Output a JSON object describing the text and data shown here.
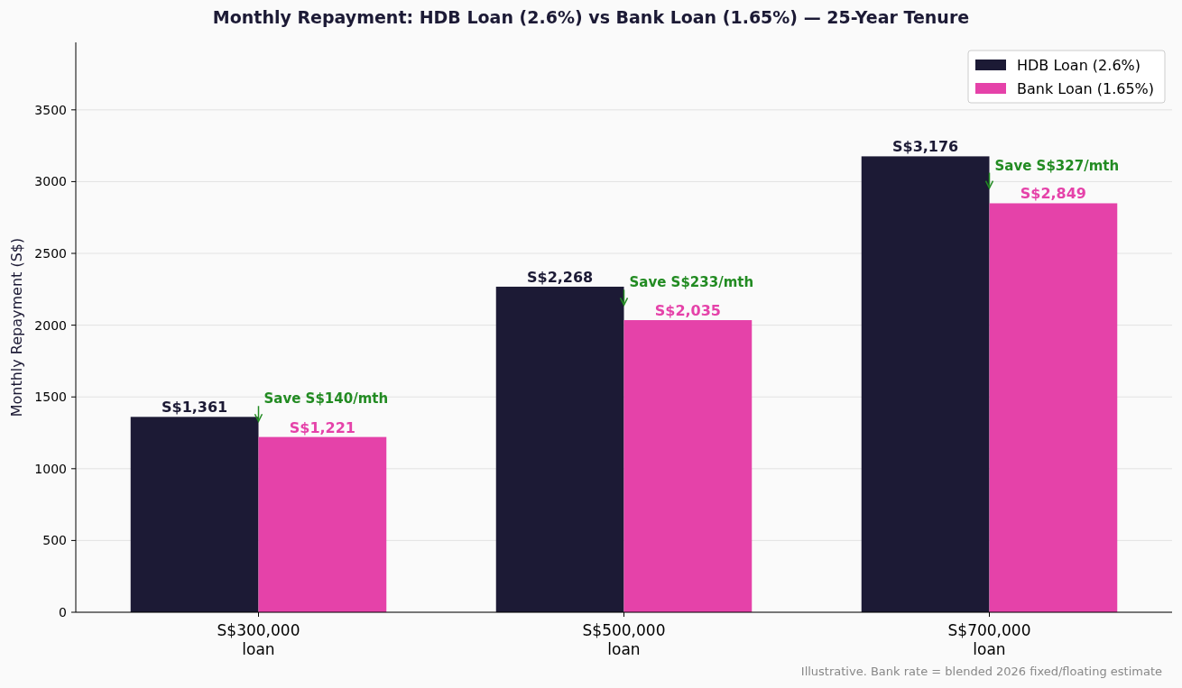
{
  "chart_data": {
    "type": "bar",
    "title": "Monthly Repayment: HDB Loan (2.6%) vs Bank Loan (1.65%) — 25-Year Tenure",
    "ylabel": "Monthly Repayment (S$)",
    "categories": [
      "S$300,000\nloan",
      "S$500,000\nloan",
      "S$700,000\nloan"
    ],
    "series": [
      {
        "name": "HDB Loan (2.6%)",
        "color": "#1c1a35",
        "values": [
          1361,
          2268,
          3176
        ],
        "value_labels": [
          "S$1,361",
          "S$2,268",
          "S$3,176"
        ]
      },
      {
        "name": "Bank Loan (1.65%)",
        "color": "#e542a9",
        "values": [
          1221,
          2035,
          2849
        ],
        "value_labels": [
          "S$1,221",
          "S$2,035",
          "S$2,849"
        ]
      }
    ],
    "ylim": [
      0,
      3970
    ],
    "yticks": [
      0,
      500,
      1000,
      1500,
      2000,
      2500,
      3000,
      3500
    ],
    "grid": "y",
    "legend": "top right",
    "annotations": [
      {
        "text": "Save S$140/mth",
        "x": "S$300,000\nloan",
        "y": 1330
      },
      {
        "text": "Save S$233/mth",
        "x": "S$500,000\nloan",
        "y": 2140
      },
      {
        "text": "Save S$327/mth",
        "x": "S$700,000\nloan",
        "y": 2955
      },
      "Illustrative. Bank rate = blended 2026 fixed/floating estimate"
    ]
  }
}
